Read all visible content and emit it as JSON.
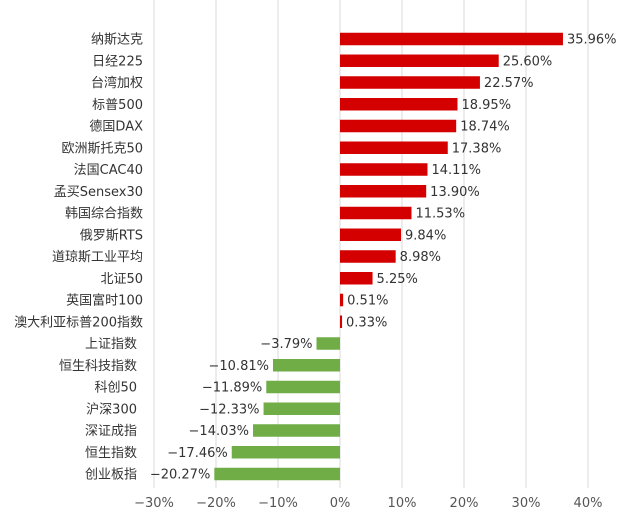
{
  "chart_data": {
    "type": "bar",
    "orientation": "horizontal",
    "categories": [
      "纳斯达克",
      "日经225",
      "台湾加权",
      "标普500",
      "德国DAX",
      "欧洲斯托克50",
      "法国CAC40",
      "孟买Sensex30",
      "韩国综合指数",
      "俄罗斯RTS",
      "道琼斯工业平均",
      "北证50",
      "英国富时100",
      "澳大利亚标普200指数",
      "上证指数",
      "恒生科技指数",
      "科创50",
      "沪深300",
      "深证成指",
      "恒生指数",
      "创业板指"
    ],
    "values": [
      35.96,
      25.6,
      22.57,
      18.95,
      18.74,
      17.38,
      14.11,
      13.9,
      11.53,
      9.84,
      8.98,
      5.25,
      0.51,
      0.33,
      -3.79,
      -10.81,
      -11.89,
      -12.33,
      -14.03,
      -17.46,
      -20.27
    ],
    "value_labels": [
      "35.96%",
      "25.60%",
      "22.57%",
      "18.95%",
      "18.74%",
      "17.38%",
      "14.11%",
      "13.90%",
      "11.53%",
      "9.84%",
      "8.98%",
      "5.25%",
      "0.51%",
      "0.33%",
      "−3.79%",
      "−10.81%",
      "−11.89%",
      "−12.33%",
      "−14.03%",
      "−17.46%",
      "−20.27%"
    ],
    "xlim": [
      -30,
      40
    ],
    "x_ticks": [
      -30,
      -20,
      -10,
      0,
      10,
      20,
      30,
      40
    ],
    "x_tick_labels": [
      "−30%",
      "−20%",
      "−10%",
      "0%",
      "10%",
      "20%",
      "30%",
      "40%"
    ],
    "grid": true,
    "colors": {
      "positive": "#d40000",
      "negative": "#70ad47",
      "grid": "#d9d9d9"
    }
  }
}
